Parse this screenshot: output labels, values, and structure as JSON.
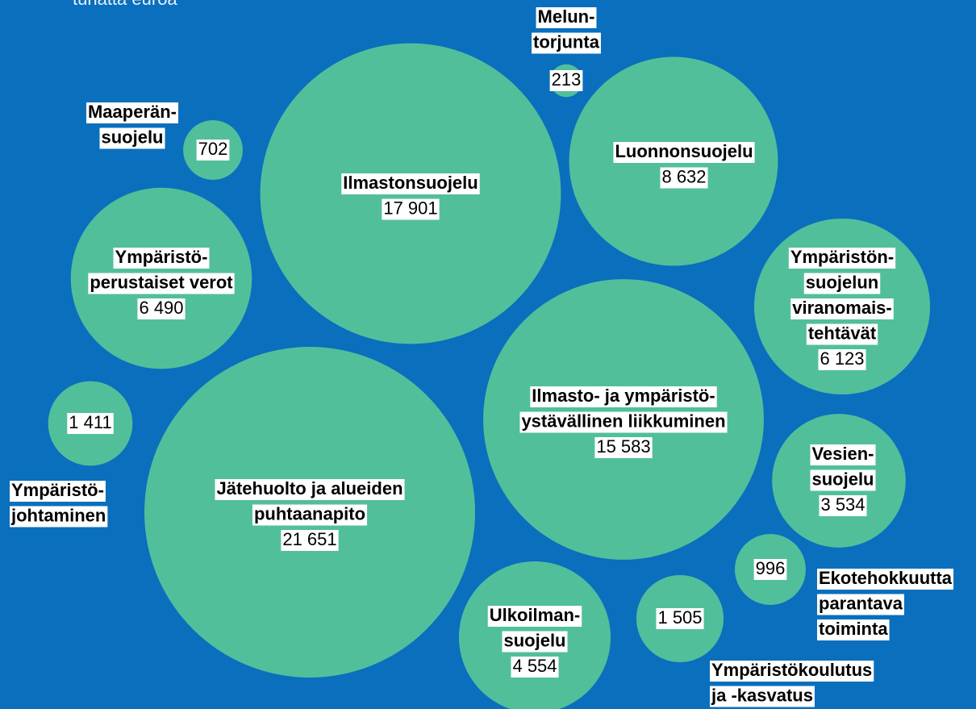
{
  "chart_data": {
    "type": "bubble",
    "subtitle": "tuhatta euroa",
    "color": "#52bf9b",
    "background": "#0a6fbd",
    "categories": [
      "Ilmastonsuojelu",
      "Jätehuolto ja alueiden\npuhtaanapito",
      "Ilmasto- ja ympäristö-\nystävällinen liikkuminen",
      "Luonnonsuojelu",
      "Ympäristö-\nperustaiset verot",
      "Ympäristön-\nsuojelun\nviranomais-\ntehtävät",
      "Ulkoilman-\nsuojelu",
      "Vesien-\nsuojelu",
      "Ympäristökoulutus\nja -kasvatus",
      "Ympäristö-\njohtaminen",
      "Ekotehokkuutta\nparantava\ntoiminta",
      "Maaperän-\nsuojelu",
      "Melun-\ntorjunta"
    ],
    "values": [
      17901,
      21651,
      15583,
      8632,
      6490,
      6123,
      4554,
      3534,
      1505,
      1411,
      996,
      702,
      213
    ],
    "value_labels": [
      "17 901",
      "21 651",
      "15 583",
      "8 632",
      "6 490",
      "6 123",
      "4 554",
      "3 534",
      "1 505",
      "1 411",
      "996",
      "702",
      "213"
    ]
  }
}
